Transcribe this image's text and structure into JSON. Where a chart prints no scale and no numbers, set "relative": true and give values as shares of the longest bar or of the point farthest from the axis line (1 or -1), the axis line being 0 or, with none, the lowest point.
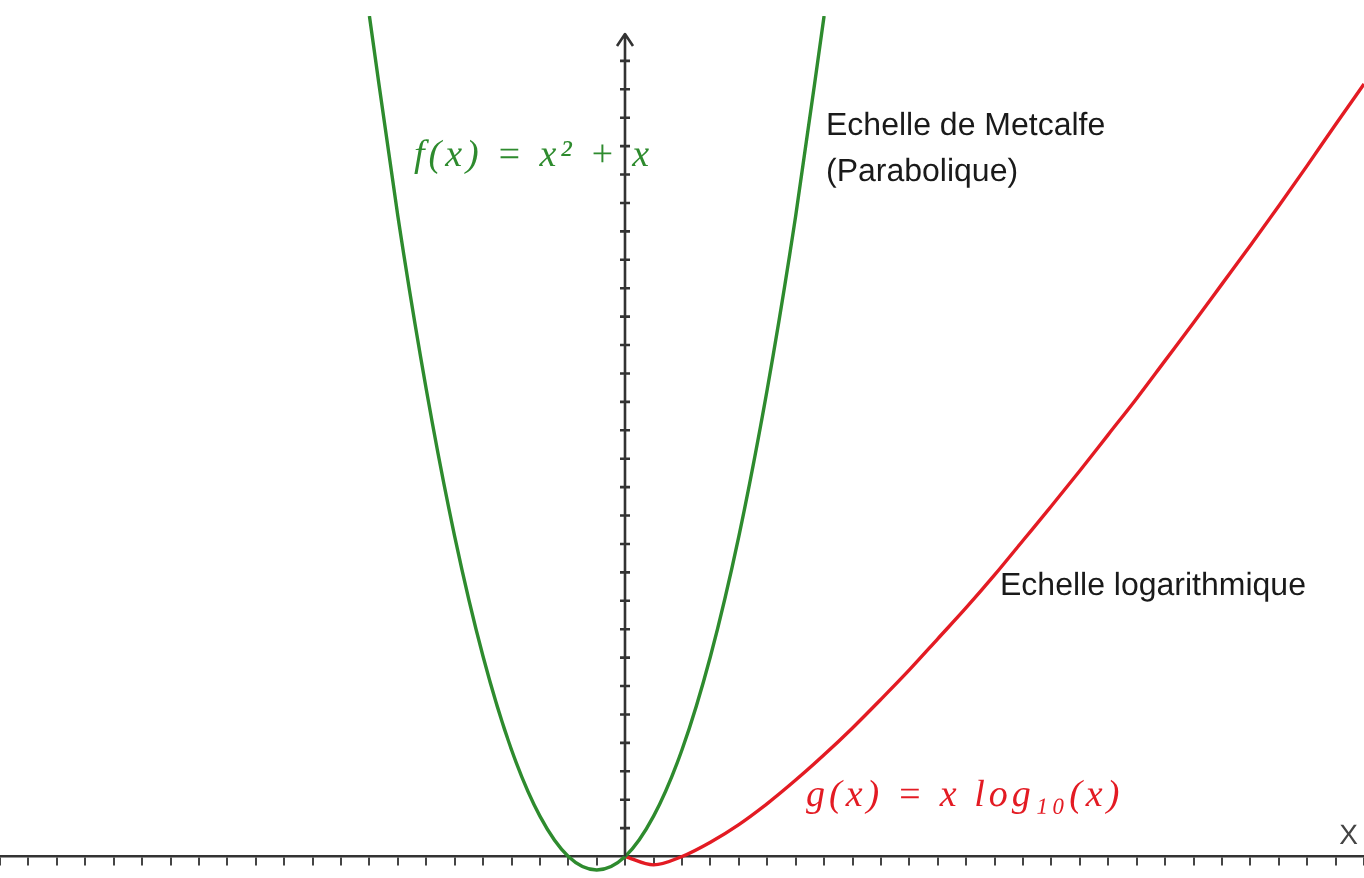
{
  "chart_data": {
    "type": "line",
    "relative": true,
    "xlabel": "X",
    "categories": [
      null,
      null,
      null,
      null,
      null,
      null,
      null,
      null,
      null,
      null,
      null,
      null,
      null,
      null,
      null,
      null,
      null,
      null,
      null,
      null,
      null,
      null,
      null,
      null,
      null,
      null,
      null,
      null,
      null,
      null,
      null,
      null,
      null,
      null,
      null,
      null,
      null,
      null,
      null,
      null,
      null,
      null,
      null,
      null,
      null,
      null,
      null,
      null,
      null
    ],
    "series": [
      {
        "name": "f(x) = x² + x",
        "color": "#2e8b2e",
        "values": [
          null,
          null,
          null,
          null,
          null,
          null,
          null,
          null,
          null,
          null,
          null,
          null,
          null,
          1.0,
          0.762,
          0.556,
          0.381,
          0.238,
          0.127,
          0.048,
          0,
          -0.016,
          0,
          0.048,
          0.127,
          0.238,
          0.381,
          0.556,
          0.762,
          1.0,
          null,
          null,
          null,
          null,
          null,
          null,
          null,
          null,
          null,
          null,
          null,
          null,
          null,
          null,
          null,
          null,
          null,
          null,
          null
        ]
      },
      {
        "name": "g(x) = x log₁₀(x)",
        "color": "#e31b23",
        "values": [
          null,
          null,
          null,
          null,
          null,
          null,
          null,
          null,
          null,
          null,
          null,
          null,
          null,
          null,
          null,
          null,
          null,
          null,
          null,
          null,
          null,
          null,
          0,
          -0.01,
          0,
          0.017,
          0.038,
          0.063,
          0.091,
          0.121,
          0.153,
          0.187,
          0.222,
          0.259,
          0.296,
          0.335,
          0.376,
          0.417,
          0.459,
          0.502,
          0.545,
          0.59,
          0.635,
          0.681,
          0.727,
          0.774,
          0.822,
          0.871,
          0.919
        ]
      }
    ],
    "annotations": [
      "Echelle de Metcalfe (Parabolique)",
      "Echelle logarithmique"
    ]
  }
}
